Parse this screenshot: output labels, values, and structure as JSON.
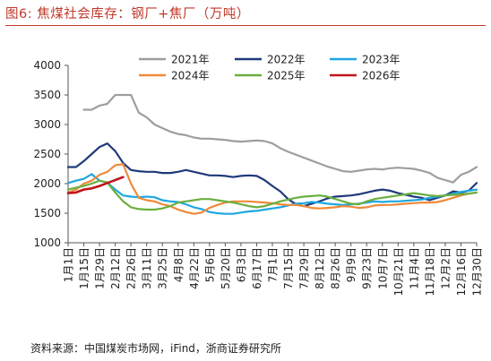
{
  "figure": {
    "title": "图6:   焦煤社会库存：钢厂+焦厂（万吨）",
    "source": "资料来源：中国煤炭市场网，iFind，浙商证券研究所"
  },
  "chart_data": {
    "type": "line",
    "title": "",
    "xlabel": "",
    "ylabel": "",
    "ylim": [
      1000,
      4000
    ],
    "yticks": [
      1000,
      1500,
      2000,
      2500,
      3000,
      3500,
      4000
    ],
    "grid": false,
    "legend_position": "top",
    "xticks": [
      "1月1日",
      "1月15日",
      "1月29日",
      "2月12日",
      "2月26日",
      "3月11日",
      "3月25日",
      "4月8日",
      "4月22日",
      "5月6日",
      "5月20日",
      "6月3日",
      "6月17日",
      "7月1日",
      "7月15日",
      "7月29日",
      "8月12日",
      "8月26日",
      "9月9日",
      "9月23日",
      "10月7日",
      "10月21日",
      "11月4日",
      "11月18日",
      "12月2日",
      "12月16日",
      "12月30日"
    ],
    "x_note": "x values are week numbers of the year (week 1 = 1月1日, week 53 = 12月30日)",
    "series": [
      {
        "name": "2021年",
        "color": "#9e9e9e",
        "x": [
          3,
          4,
          5,
          6,
          7,
          8,
          9,
          10,
          11,
          12,
          13,
          14,
          15,
          16,
          17,
          18,
          19,
          20,
          21,
          22,
          23,
          24,
          25,
          26,
          27,
          28,
          29,
          30,
          31,
          32,
          33,
          34,
          35,
          36,
          37,
          38,
          39,
          40,
          41,
          42,
          43,
          44,
          45,
          46,
          47,
          48,
          49,
          50,
          51,
          52,
          53
        ],
        "y": [
          3250,
          3250,
          3320,
          3350,
          3500,
          3500,
          3500,
          3200,
          3120,
          3000,
          2940,
          2880,
          2840,
          2820,
          2780,
          2760,
          2760,
          2750,
          2740,
          2720,
          2710,
          2720,
          2730,
          2720,
          2680,
          2600,
          2540,
          2490,
          2440,
          2390,
          2340,
          2290,
          2250,
          2210,
          2200,
          2220,
          2240,
          2250,
          2240,
          2260,
          2270,
          2260,
          2250,
          2220,
          2180,
          2100,
          2060,
          2020,
          2150,
          2200,
          2280
        ]
      },
      {
        "name": "2022年",
        "color": "#1f3a7a",
        "x": [
          1,
          2,
          3,
          4,
          5,
          6,
          7,
          8,
          9,
          10,
          11,
          12,
          13,
          14,
          15,
          16,
          17,
          18,
          19,
          20,
          21,
          22,
          23,
          24,
          25,
          26,
          27,
          28,
          29,
          30,
          31,
          32,
          33,
          34,
          35,
          36,
          37,
          38,
          39,
          40,
          41,
          42,
          43,
          44,
          45,
          46,
          47,
          48,
          49,
          50,
          51,
          52,
          53
        ],
        "y": [
          2280,
          2280,
          2380,
          2500,
          2620,
          2680,
          2550,
          2350,
          2230,
          2210,
          2200,
          2200,
          2180,
          2180,
          2200,
          2230,
          2200,
          2170,
          2140,
          2140,
          2130,
          2110,
          2130,
          2140,
          2130,
          2060,
          1960,
          1870,
          1740,
          1650,
          1620,
          1660,
          1700,
          1750,
          1780,
          1790,
          1800,
          1820,
          1850,
          1880,
          1900,
          1880,
          1840,
          1810,
          1780,
          1760,
          1720,
          1760,
          1800,
          1870,
          1850,
          1880,
          2010
        ]
      },
      {
        "name": "2023年",
        "color": "#1ea7e1",
        "x": [
          1,
          2,
          3,
          4,
          5,
          6,
          7,
          8,
          9,
          10,
          11,
          12,
          13,
          14,
          15,
          16,
          17,
          18,
          19,
          20,
          21,
          22,
          23,
          24,
          25,
          26,
          27,
          28,
          29,
          30,
          31,
          32,
          33,
          34,
          35,
          36,
          37,
          38,
          39,
          40,
          41,
          42,
          43,
          44,
          45,
          46,
          47,
          48,
          49,
          50,
          51,
          52,
          53
        ],
        "y": [
          2010,
          2050,
          2080,
          2160,
          2050,
          2020,
          1900,
          1800,
          1780,
          1770,
          1780,
          1770,
          1720,
          1700,
          1690,
          1650,
          1600,
          1570,
          1520,
          1500,
          1490,
          1490,
          1510,
          1530,
          1540,
          1560,
          1580,
          1600,
          1630,
          1660,
          1670,
          1690,
          1680,
          1660,
          1650,
          1640,
          1650,
          1660,
          1680,
          1700,
          1690,
          1700,
          1700,
          1710,
          1720,
          1730,
          1760,
          1780,
          1800,
          1830,
          1860,
          1880,
          1900
        ]
      },
      {
        "name": "2024年",
        "color": "#ef8a3a",
        "x": [
          1,
          2,
          3,
          4,
          5,
          6,
          7,
          8,
          9,
          10,
          11,
          12,
          13,
          14,
          15,
          16,
          17,
          18,
          19,
          20,
          21,
          22,
          23,
          24,
          25,
          26,
          27,
          28,
          29,
          30,
          31,
          32,
          33,
          34,
          35,
          36,
          37,
          38,
          39,
          40,
          41,
          42,
          43,
          44,
          45,
          46,
          47,
          48,
          49,
          50,
          51,
          52,
          53
        ],
        "y": [
          1850,
          1900,
          2000,
          2050,
          2150,
          2200,
          2310,
          2330,
          2000,
          1760,
          1720,
          1700,
          1650,
          1620,
          1560,
          1520,
          1490,
          1510,
          1590,
          1640,
          1680,
          1700,
          1700,
          1700,
          1690,
          1680,
          1670,
          1650,
          1640,
          1640,
          1620,
          1590,
          1580,
          1590,
          1600,
          1620,
          1610,
          1590,
          1600,
          1630,
          1640,
          1640,
          1650,
          1660,
          1670,
          1680,
          1680,
          1690,
          1720,
          1760,
          1800,
          1830,
          1850
        ]
      },
      {
        "name": "2025年",
        "color": "#6aaf3f",
        "x": [
          1,
          2,
          3,
          4,
          5,
          6,
          7,
          8,
          9,
          10,
          11,
          12,
          13,
          14,
          15,
          16,
          17,
          18,
          19,
          20,
          21,
          22,
          23,
          24,
          25,
          26,
          27,
          28,
          29,
          30,
          31,
          32,
          33,
          34,
          35,
          36,
          37,
          38,
          39,
          40,
          41,
          42,
          43,
          44,
          45,
          46,
          47,
          48,
          49,
          50,
          51,
          52,
          53
        ],
        "y": [
          1900,
          1930,
          1960,
          2000,
          2050,
          2020,
          1850,
          1700,
          1600,
          1570,
          1560,
          1560,
          1580,
          1620,
          1680,
          1700,
          1720,
          1740,
          1740,
          1720,
          1700,
          1680,
          1650,
          1620,
          1600,
          1620,
          1660,
          1700,
          1730,
          1760,
          1780,
          1790,
          1800,
          1780,
          1740,
          1700,
          1660,
          1650,
          1700,
          1740,
          1760,
          1780,
          1800,
          1820,
          1840,
          1820,
          1800,
          1790,
          1800,
          1810,
          1820,
          1830,
          1850
        ]
      },
      {
        "name": "2026年",
        "color": "#c0141c",
        "x": [
          1,
          2,
          3,
          4,
          5,
          6,
          7,
          8
        ],
        "y": [
          1840,
          1850,
          1900,
          1920,
          1960,
          2010,
          2060,
          2110
        ]
      }
    ]
  }
}
